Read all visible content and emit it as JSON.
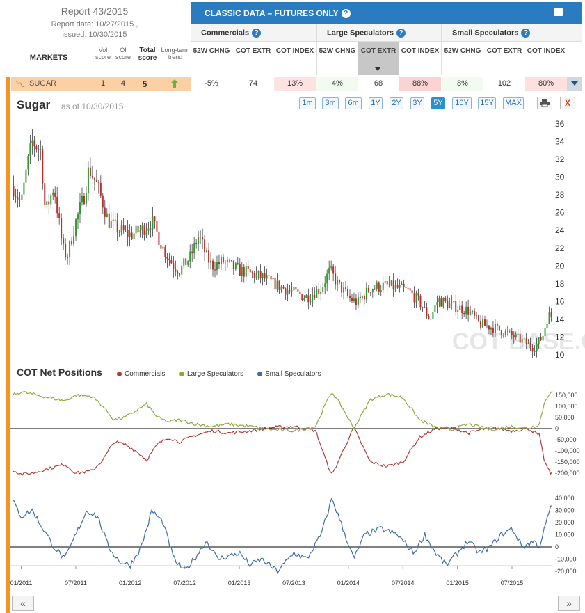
{
  "report": {
    "title": "Report 43/2015",
    "report_date": "Report date: 10/27/2015 ,",
    "issued": "issued: 10/30/2015"
  },
  "table": {
    "markets_label": "MARKETS",
    "vol_score": "Vol score",
    "oi_score": "OI score",
    "total_score": "Total score",
    "trend": "Long-term trend",
    "classic_title": "CLASSIC DATA – FUTURES ONLY",
    "groups": [
      "Commercials",
      "Large Speculators",
      "Small Speculators"
    ],
    "col_headers": [
      "52W CHNG",
      "COT EXTR",
      "COT INDEX",
      "52W CHNG",
      "COT EXTR",
      "COT INDEX",
      "52W CHNG",
      "COT EXTR",
      "COT INDEX"
    ],
    "row": {
      "market": "SUGAR",
      "vol": "1",
      "oi": "4",
      "total": "5",
      "cells": [
        "-5%",
        "74",
        "13%",
        "4%",
        "68",
        "88%",
        "8%",
        "102",
        "80%"
      ]
    }
  },
  "chart": {
    "title": "Sugar",
    "asof": "as of 10/30/2015",
    "ranges": [
      "1m",
      "3m",
      "6m",
      "1Y",
      "2Y",
      "3Y",
      "5Y",
      "10Y",
      "15Y",
      "MAX"
    ],
    "active_range": "5Y",
    "close_label": "X",
    "watermark": "COT BASE.COM",
    "cot_title": "COT Net Positions",
    "legend": [
      "Commercials",
      "Large Speculators",
      "Small Speculators"
    ],
    "prev": "«",
    "next": "»"
  },
  "chart_data": [
    {
      "type": "candlestick",
      "name": "Sugar",
      "ylim": [
        10,
        36
      ],
      "yticks": [
        10,
        12,
        14,
        16,
        18,
        20,
        22,
        24,
        26,
        28,
        30,
        32,
        34,
        36
      ],
      "x_ticks": [
        "01/2011",
        "07/2011",
        "01/2012",
        "07/2012",
        "01/2013",
        "07/2013",
        "01/2014",
        "07/2014",
        "01/2015",
        "07/2015"
      ],
      "close_keypoints": [
        [
          2010.92,
          29
        ],
        [
          2011.0,
          27
        ],
        [
          2011.05,
          31
        ],
        [
          2011.1,
          34
        ],
        [
          2011.18,
          33
        ],
        [
          2011.22,
          26
        ],
        [
          2011.3,
          29
        ],
        [
          2011.38,
          22
        ],
        [
          2011.42,
          21
        ],
        [
          2011.5,
          25
        ],
        [
          2011.58,
          28
        ],
        [
          2011.62,
          31
        ],
        [
          2011.7,
          29
        ],
        [
          2011.8,
          25
        ],
        [
          2011.9,
          24
        ],
        [
          2012.0,
          23.5
        ],
        [
          2012.1,
          24
        ],
        [
          2012.2,
          25
        ],
        [
          2012.3,
          22
        ],
        [
          2012.4,
          20
        ],
        [
          2012.45,
          19.5
        ],
        [
          2012.55,
          21
        ],
        [
          2012.63,
          23.5
        ],
        [
          2012.7,
          21
        ],
        [
          2012.75,
          20
        ],
        [
          2012.85,
          20.5
        ],
        [
          2013.0,
          19.5
        ],
        [
          2013.2,
          18.8
        ],
        [
          2013.35,
          17.8
        ],
        [
          2013.5,
          17
        ],
        [
          2013.62,
          16.5
        ],
        [
          2013.75,
          17.5
        ],
        [
          2013.83,
          19.5
        ],
        [
          2013.9,
          18
        ],
        [
          2014.0,
          16.5
        ],
        [
          2014.08,
          15.8
        ],
        [
          2014.2,
          17.5
        ],
        [
          2014.35,
          17.8
        ],
        [
          2014.55,
          17.2
        ],
        [
          2014.65,
          16
        ],
        [
          2014.75,
          14
        ],
        [
          2014.82,
          16.2
        ],
        [
          2014.95,
          15.5
        ],
        [
          2015.1,
          15
        ],
        [
          2015.2,
          13.5
        ],
        [
          2015.35,
          13
        ],
        [
          2015.45,
          12.5
        ],
        [
          2015.6,
          11.5
        ],
        [
          2015.7,
          10.8
        ],
        [
          2015.78,
          12
        ],
        [
          2015.83,
          14.5
        ],
        [
          2015.85,
          14.3
        ]
      ]
    },
    {
      "type": "line",
      "name": "COT Net Positions",
      "ylim": [
        -230000,
        180000
      ],
      "yticks": [
        150000,
        100000,
        50000,
        0,
        -50000,
        -100000,
        -150000,
        -200000
      ],
      "series": [
        {
          "name": "Commercials",
          "color": "#b03a3a",
          "keypoints": [
            [
              2010.92,
              -185000
            ],
            [
              2011.0,
              -205000
            ],
            [
              2011.1,
              -200000
            ],
            [
              2011.25,
              -180000
            ],
            [
              2011.4,
              -160000
            ],
            [
              2011.5,
              -200000
            ],
            [
              2011.65,
              -190000
            ],
            [
              2011.75,
              -140000
            ],
            [
              2011.85,
              -60000
            ],
            [
              2011.95,
              -70000
            ],
            [
              2012.05,
              -100000
            ],
            [
              2012.15,
              -140000
            ],
            [
              2012.25,
              -70000
            ],
            [
              2012.35,
              -40000
            ],
            [
              2012.45,
              -60000
            ],
            [
              2012.6,
              -30000
            ],
            [
              2012.75,
              -10000
            ],
            [
              2012.9,
              -20000
            ],
            [
              2013.1,
              -10000
            ],
            [
              2013.3,
              5000
            ],
            [
              2013.5,
              10000
            ],
            [
              2013.7,
              -10000
            ],
            [
              2013.8,
              -150000
            ],
            [
              2013.85,
              -210000
            ],
            [
              2013.95,
              -100000
            ],
            [
              2014.05,
              5000
            ],
            [
              2014.2,
              -150000
            ],
            [
              2014.35,
              -170000
            ],
            [
              2014.5,
              -150000
            ],
            [
              2014.65,
              -40000
            ],
            [
              2014.8,
              0
            ],
            [
              2014.95,
              5000
            ],
            [
              2015.1,
              -20000
            ],
            [
              2015.3,
              5000
            ],
            [
              2015.5,
              -10000
            ],
            [
              2015.65,
              0
            ],
            [
              2015.75,
              -30000
            ],
            [
              2015.8,
              -150000
            ],
            [
              2015.85,
              -200000
            ]
          ]
        },
        {
          "name": "Large Speculators",
          "color": "#8aaa3c",
          "keypoints": [
            [
              2010.92,
              150000
            ],
            [
              2011.0,
              165000
            ],
            [
              2011.1,
              155000
            ],
            [
              2011.25,
              140000
            ],
            [
              2011.4,
              125000
            ],
            [
              2011.5,
              150000
            ],
            [
              2011.65,
              145000
            ],
            [
              2011.75,
              100000
            ],
            [
              2011.85,
              40000
            ],
            [
              2011.95,
              50000
            ],
            [
              2012.05,
              80000
            ],
            [
              2012.15,
              110000
            ],
            [
              2012.25,
              50000
            ],
            [
              2012.35,
              30000
            ],
            [
              2012.45,
              40000
            ],
            [
              2012.6,
              20000
            ],
            [
              2012.75,
              10000
            ],
            [
              2012.9,
              20000
            ],
            [
              2013.1,
              10000
            ],
            [
              2013.3,
              -5000
            ],
            [
              2013.5,
              -10000
            ],
            [
              2013.7,
              10000
            ],
            [
              2013.8,
              120000
            ],
            [
              2013.85,
              165000
            ],
            [
              2013.95,
              90000
            ],
            [
              2014.05,
              0
            ],
            [
              2014.2,
              130000
            ],
            [
              2014.35,
              155000
            ],
            [
              2014.5,
              140000
            ],
            [
              2014.65,
              40000
            ],
            [
              2014.8,
              5000
            ],
            [
              2014.95,
              -5000
            ],
            [
              2015.1,
              20000
            ],
            [
              2015.3,
              -5000
            ],
            [
              2015.5,
              10000
            ],
            [
              2015.65,
              0
            ],
            [
              2015.75,
              20000
            ],
            [
              2015.8,
              120000
            ],
            [
              2015.85,
              165000
            ]
          ]
        },
        {
          "name": "Small Speculators",
          "color": "#3d6ea8",
          "ylim": [
            -22000,
            44000
          ],
          "yticks": [
            40000,
            30000,
            20000,
            10000,
            0,
            -10000,
            -20000
          ],
          "keypoints": [
            [
              2010.92,
              38000
            ],
            [
              2011.0,
              25000
            ],
            [
              2011.1,
              30000
            ],
            [
              2011.2,
              15000
            ],
            [
              2011.3,
              0
            ],
            [
              2011.4,
              -10000
            ],
            [
              2011.5,
              10000
            ],
            [
              2011.6,
              30000
            ],
            [
              2011.7,
              25000
            ],
            [
              2011.8,
              0
            ],
            [
              2011.9,
              -12000
            ],
            [
              2012.0,
              -15000
            ],
            [
              2012.1,
              0
            ],
            [
              2012.2,
              30000
            ],
            [
              2012.3,
              20000
            ],
            [
              2012.4,
              -10000
            ],
            [
              2012.5,
              -20000
            ],
            [
              2012.6,
              -8000
            ],
            [
              2012.7,
              5000
            ],
            [
              2012.8,
              -10000
            ],
            [
              2013.0,
              -5000
            ],
            [
              2013.1,
              -15000
            ],
            [
              2013.2,
              -10000
            ],
            [
              2013.35,
              -20000
            ],
            [
              2013.5,
              -5000
            ],
            [
              2013.62,
              -10000
            ],
            [
              2013.75,
              10000
            ],
            [
              2013.85,
              40000
            ],
            [
              2013.95,
              15000
            ],
            [
              2014.05,
              -10000
            ],
            [
              2014.15,
              10000
            ],
            [
              2014.3,
              15000
            ],
            [
              2014.45,
              10000
            ],
            [
              2014.6,
              -5000
            ],
            [
              2014.7,
              10000
            ],
            [
              2014.8,
              -5000
            ],
            [
              2014.9,
              -15000
            ],
            [
              2015.0,
              -5000
            ],
            [
              2015.1,
              5000
            ],
            [
              2015.2,
              -5000
            ],
            [
              2015.3,
              0
            ],
            [
              2015.4,
              10000
            ],
            [
              2015.5,
              15000
            ],
            [
              2015.6,
              0
            ],
            [
              2015.7,
              5000
            ],
            [
              2015.75,
              0
            ],
            [
              2015.8,
              15000
            ],
            [
              2015.85,
              32000
            ]
          ]
        }
      ]
    }
  ]
}
